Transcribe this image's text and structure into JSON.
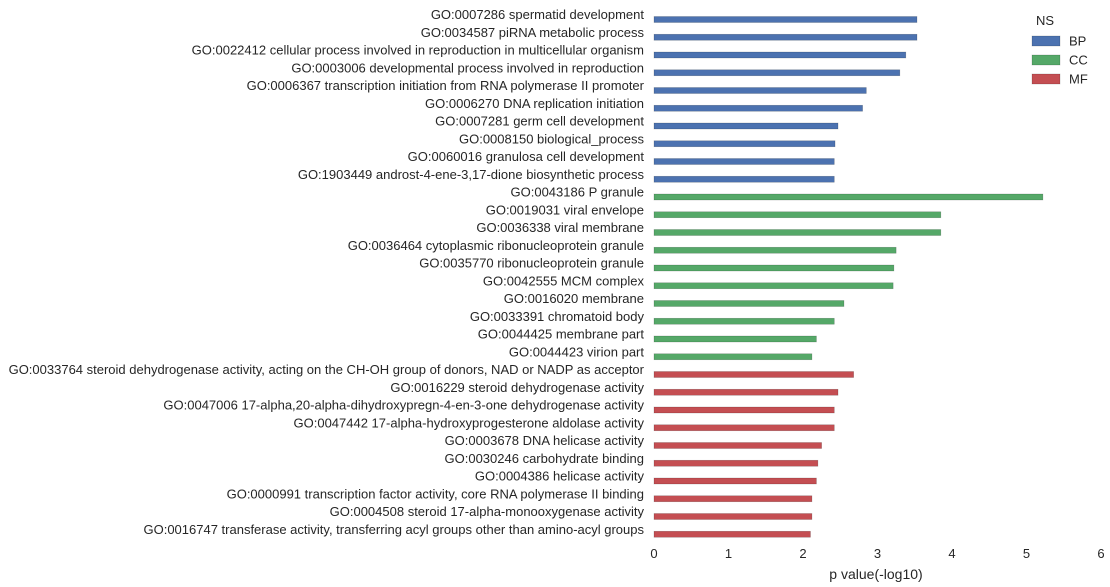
{
  "chart_data": {
    "type": "bar",
    "orientation": "horizontal",
    "xlabel": "p value(-log10)",
    "ylabel": "",
    "xlim": [
      0,
      6
    ],
    "xticks": [
      "0",
      "1",
      "2",
      "3",
      "4",
      "5",
      "6"
    ],
    "grid": false,
    "legend": {
      "title": "NS",
      "position": "top-right"
    },
    "groups": [
      {
        "name": "BP",
        "color": "#4c72b0"
      },
      {
        "name": "CC",
        "color": "#55a868"
      },
      {
        "name": "MF",
        "color": "#c44e52"
      }
    ],
    "categories": [
      "GO:0007286 spermatid development",
      "GO:0034587 piRNA metabolic process",
      "GO:0022412 cellular process involved in reproduction in multicellular organism",
      "GO:0003006 developmental process involved in reproduction",
      "GO:0006367 transcription initiation from RNA polymerase II promoter",
      "GO:0006270 DNA replication initiation",
      "GO:0007281 germ cell development",
      "GO:0008150 biological_process",
      "GO:0060016 granulosa cell development",
      "GO:1903449 androst-4-ene-3,17-dione biosynthetic process",
      "GO:0043186 P granule",
      "GO:0019031 viral envelope",
      "GO:0036338 viral membrane",
      "GO:0036464 cytoplasmic ribonucleoprotein granule",
      "GO:0035770 ribonucleoprotein granule",
      "GO:0042555 MCM complex",
      "GO:0016020 membrane",
      "GO:0033391 chromatoid body",
      "GO:0044425 membrane part",
      "GO:0044423 virion part",
      "GO:0033764 steroid dehydrogenase activity, acting on the CH-OH group of donors, NAD or NADP as acceptor",
      "GO:0016229 steroid dehydrogenase activity",
      "GO:0047006 17-alpha,20-alpha-dihydroxypregn-4-en-3-one dehydrogenase activity",
      "GO:0047442 17-alpha-hydroxyprogesterone aldolase activity",
      "GO:0003678 DNA helicase activity",
      "GO:0030246 carbohydrate binding",
      "GO:0004386 helicase activity",
      "GO:0000991 transcription factor activity, core RNA polymerase II binding",
      "GO:0004508 steroid 17-alpha-monooxygenase activity",
      "GO:0016747 transferase activity, transferring acyl groups other than amino-acyl groups"
    ],
    "values": [
      3.53,
      3.53,
      3.38,
      3.3,
      2.85,
      2.8,
      2.47,
      2.43,
      2.42,
      2.42,
      5.22,
      3.85,
      3.85,
      3.25,
      3.22,
      3.21,
      2.55,
      2.42,
      2.18,
      2.12,
      2.68,
      2.47,
      2.42,
      2.42,
      2.25,
      2.2,
      2.18,
      2.12,
      2.12,
      2.1
    ],
    "group_of": [
      "BP",
      "BP",
      "BP",
      "BP",
      "BP",
      "BP",
      "BP",
      "BP",
      "BP",
      "BP",
      "CC",
      "CC",
      "CC",
      "CC",
      "CC",
      "CC",
      "CC",
      "CC",
      "CC",
      "CC",
      "MF",
      "MF",
      "MF",
      "MF",
      "MF",
      "MF",
      "MF",
      "MF",
      "MF",
      "MF"
    ]
  }
}
